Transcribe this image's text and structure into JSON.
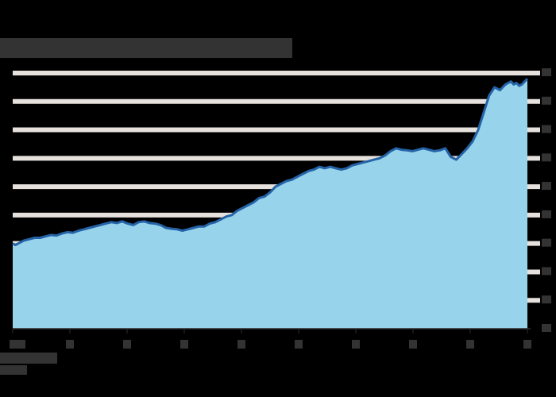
{
  "chart_data": {
    "type": "area",
    "title": "",
    "xlabel": "",
    "ylabel": "",
    "ylim": [
      0,
      9
    ],
    "grid": true,
    "legend": "none",
    "colors": {
      "area": "#97d3ea",
      "line": "#2563a8",
      "grid": "#e6e1dc",
      "axis": "#2d2d2d",
      "background": "#000000",
      "label_box": "#333333"
    },
    "x_tick_count": 10,
    "y_tick_count": 10,
    "x": [
      0,
      0.05,
      0.1,
      0.15,
      0.2,
      0.3,
      0.4,
      0.5,
      0.6,
      0.7,
      0.8,
      0.9,
      1.0,
      1.1,
      1.2,
      1.3,
      1.4,
      1.5,
      1.6,
      1.7,
      1.8,
      1.9,
      2.0,
      2.1,
      2.2,
      2.3,
      2.4,
      2.5,
      2.6,
      2.7,
      2.8,
      2.9,
      3.0,
      3.1,
      3.2,
      3.3,
      3.4,
      3.5,
      3.6,
      3.7,
      3.8,
      3.9,
      4.0,
      4.1,
      4.2,
      4.3,
      4.4,
      4.5,
      4.6,
      4.7,
      4.8,
      4.9,
      5.0,
      5.1,
      5.2,
      5.3,
      5.4,
      5.5,
      5.6,
      5.7,
      5.8,
      5.9,
      6.0,
      6.1,
      6.2,
      6.3,
      6.4,
      6.5,
      6.6,
      6.7,
      6.8,
      6.9,
      7.0,
      7.1,
      7.2,
      7.3,
      7.4,
      7.5,
      7.6,
      7.7,
      7.8,
      7.9,
      8.0,
      8.1,
      8.2,
      8.3,
      8.4,
      8.5,
      8.6,
      8.7,
      8.8,
      8.9,
      9.0,
      9.1,
      9.15,
      9.2,
      9.25,
      9.3,
      9.35,
      9.4
    ],
    "values": [
      3.0,
      2.95,
      3.0,
      3.05,
      3.1,
      3.15,
      3.2,
      3.2,
      3.25,
      3.3,
      3.28,
      3.35,
      3.4,
      3.38,
      3.45,
      3.5,
      3.55,
      3.6,
      3.65,
      3.7,
      3.75,
      3.72,
      3.78,
      3.7,
      3.65,
      3.75,
      3.78,
      3.72,
      3.7,
      3.65,
      3.55,
      3.52,
      3.5,
      3.45,
      3.5,
      3.55,
      3.6,
      3.6,
      3.7,
      3.75,
      3.85,
      3.95,
      4.0,
      4.15,
      4.25,
      4.35,
      4.45,
      4.6,
      4.65,
      4.8,
      5.0,
      5.1,
      5.2,
      5.25,
      5.35,
      5.45,
      5.55,
      5.6,
      5.7,
      5.65,
      5.7,
      5.65,
      5.6,
      5.65,
      5.75,
      5.8,
      5.85,
      5.9,
      5.95,
      6.0,
      6.1,
      6.25,
      6.35,
      6.3,
      6.28,
      6.25,
      6.3,
      6.35,
      6.3,
      6.25,
      6.28,
      6.35,
      6.05,
      5.95,
      6.15,
      6.35,
      6.6,
      7.0,
      7.6,
      8.2,
      8.5,
      8.4,
      8.6,
      8.7,
      8.6,
      8.65,
      8.55,
      8.6,
      8.7,
      8.8
    ]
  }
}
